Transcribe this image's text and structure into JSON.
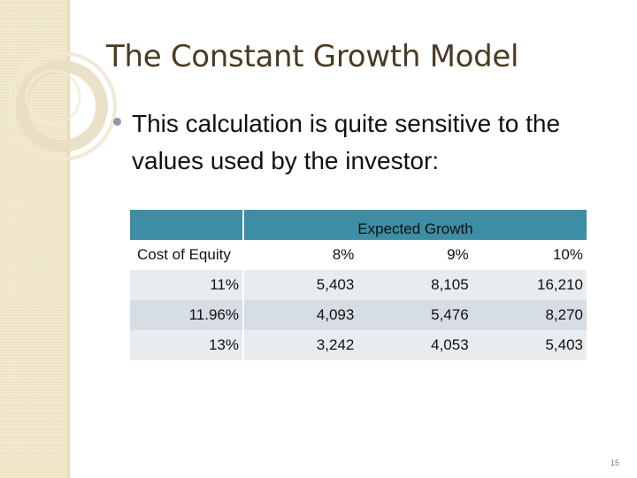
{
  "slide": {
    "title": "The Constant Growth Model",
    "bullet": "This calculation is quite sensitive to the values used by the investor:",
    "page_number": "15"
  },
  "table": {
    "group_header": "Expected Growth",
    "row_header_label": "Cost of Equity",
    "columns": [
      "8%",
      "9%",
      "10%"
    ],
    "rows": [
      {
        "label": "11%",
        "values": [
          "5,403",
          "8,105",
          "16,210"
        ]
      },
      {
        "label": "11.96%",
        "values": [
          "4,093",
          "5,476",
          "8,270"
        ]
      },
      {
        "label": "13%",
        "values": [
          "3,242",
          "4,053",
          "5,403"
        ]
      }
    ]
  },
  "colors": {
    "header_band": "#3d8da5",
    "title_text": "#4a3b22",
    "sidebar": "#f4ecd0"
  }
}
